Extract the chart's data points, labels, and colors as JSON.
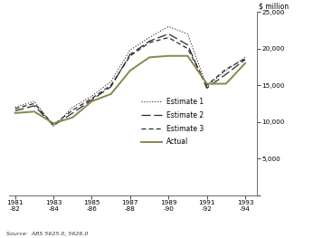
{
  "x_labels": [
    "1981\n-82",
    "1983\n-84",
    "1985\n-86",
    "1987\n-88",
    "1989\n-90",
    "1991\n-92",
    "1993\n-94"
  ],
  "x_positions": [
    0,
    2,
    4,
    6,
    8,
    10,
    12
  ],
  "actual": {
    "x": [
      0,
      1,
      2,
      3,
      4,
      5,
      6,
      7,
      8,
      9,
      10,
      11,
      12
    ],
    "y": [
      11200,
      11400,
      9800,
      10600,
      12800,
      13800,
      17000,
      18800,
      19000,
      19000,
      15200,
      15200,
      18000
    ]
  },
  "estimate1": {
    "x": [
      0,
      1,
      2,
      3,
      4,
      5,
      6,
      7,
      8,
      9,
      10,
      11,
      12
    ],
    "y": [
      12000,
      12800,
      9400,
      12000,
      13500,
      15500,
      19800,
      21500,
      23000,
      22000,
      14800,
      17000,
      18800
    ]
  },
  "estimate2": {
    "x": [
      0,
      1,
      2,
      3,
      4,
      5,
      6,
      7,
      8,
      9,
      10,
      11,
      12
    ],
    "y": [
      11500,
      12200,
      9500,
      11200,
      13000,
      14800,
      19200,
      21000,
      22000,
      20500,
      14600,
      16500,
      18500
    ]
  },
  "estimate3": {
    "x": [
      0,
      1,
      2,
      3,
      4,
      5,
      6,
      7,
      8,
      9,
      10,
      11,
      12
    ],
    "y": [
      11800,
      12500,
      9600,
      11600,
      13200,
      15000,
      19000,
      20800,
      21500,
      20000,
      15000,
      17200,
      18600
    ]
  },
  "actual_color": "#8B864E",
  "estimate_color": "#2a2a2a",
  "ylim": [
    0,
    25000
  ],
  "yticks": [
    0,
    5000,
    10000,
    15000,
    20000,
    25000
  ],
  "ylabel": "$ million",
  "source": "Source:  ABS 5625.0, 5626.0",
  "background_color": "#ffffff"
}
